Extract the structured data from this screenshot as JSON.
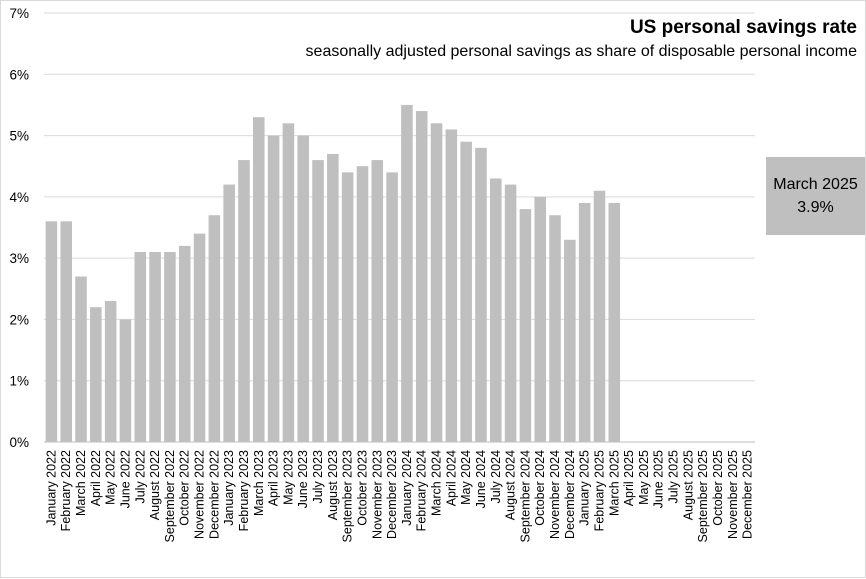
{
  "chart_data": {
    "type": "bar",
    "title": "US personal savings rate",
    "subtitle": "seasonally adjusted personal savings as share of disposable personal income",
    "xlabel": "",
    "ylabel": "",
    "ylim": [
      0,
      7
    ],
    "y_ticks": [
      "0%",
      "1%",
      "2%",
      "3%",
      "4%",
      "5%",
      "6%",
      "7%"
    ],
    "grid": true,
    "bar_color": "#bfbfbf",
    "categories": [
      "January 2022",
      "February 2022",
      "March 2022",
      "April 2022",
      "May 2022",
      "June 2022",
      "July 2022",
      "August 2022",
      "September 2022",
      "October 2022",
      "November 2022",
      "December 2022",
      "January 2023",
      "February 2023",
      "March 2023",
      "April 2023",
      "May 2023",
      "June 2023",
      "July 2023",
      "August 2023",
      "September 2023",
      "October 2023",
      "November 2023",
      "December 2023",
      "January 2024",
      "February 2024",
      "March 2024",
      "April 2024",
      "May 2024",
      "June 2024",
      "July 2024",
      "August 2024",
      "September 2024",
      "October 2024",
      "November 2024",
      "December 2024",
      "January 2025",
      "February 2025",
      "March 2025",
      "April 2025",
      "May 2025",
      "June 2025",
      "July 2025",
      "August 2025",
      "September 2025",
      "October 2025",
      "November 2025",
      "December 2025"
    ],
    "values": [
      3.6,
      3.6,
      2.7,
      2.2,
      2.3,
      2.0,
      3.1,
      3.1,
      3.1,
      3.2,
      3.4,
      3.7,
      4.2,
      4.6,
      5.3,
      5.0,
      5.2,
      5.0,
      4.6,
      4.7,
      4.4,
      4.5,
      4.6,
      4.4,
      5.5,
      5.4,
      5.2,
      5.1,
      4.9,
      4.8,
      4.3,
      4.2,
      3.8,
      4.0,
      3.7,
      3.3,
      3.9,
      4.1,
      3.9,
      null,
      null,
      null,
      null,
      null,
      null,
      null,
      null,
      null
    ],
    "annotation": {
      "line1": "March 2025",
      "line2": "3.9%"
    }
  }
}
